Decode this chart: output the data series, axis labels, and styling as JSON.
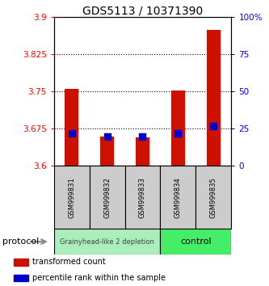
{
  "title": "GDS5113 / 10371390",
  "samples": [
    "GSM999831",
    "GSM999832",
    "GSM999833",
    "GSM999834",
    "GSM999835"
  ],
  "transformed_counts": [
    3.755,
    3.66,
    3.657,
    3.752,
    3.875
  ],
  "percentile_ranks": [
    22,
    20,
    20,
    22,
    27
  ],
  "ylim_left": [
    3.6,
    3.9
  ],
  "ylim_right": [
    0,
    100
  ],
  "yticks_left": [
    3.6,
    3.675,
    3.75,
    3.825,
    3.9
  ],
  "yticks_right": [
    0,
    25,
    50,
    75,
    100
  ],
  "ytick_labels_left": [
    "3.6",
    "3.675",
    "3.75",
    "3.825",
    "3.9"
  ],
  "ytick_labels_right": [
    "0",
    "25",
    "50",
    "75",
    "100%"
  ],
  "hlines": [
    3.675,
    3.75,
    3.825
  ],
  "group1_label": "Grainyhead-like 2 depletion",
  "group1_samples": [
    0,
    1,
    2
  ],
  "group1_color": "#aaeebb",
  "group2_label": "control",
  "group2_samples": [
    3,
    4
  ],
  "group2_color": "#44ee66",
  "bar_color": "#cc1100",
  "dot_color": "#0000cc",
  "bar_bottom": 3.6,
  "bar_width": 0.4,
  "dot_size": 30,
  "group_label": "protocol",
  "legend_items": [
    {
      "color": "#cc1100",
      "label": "transformed count"
    },
    {
      "color": "#0000cc",
      "label": "percentile rank within the sample"
    }
  ],
  "sample_box_color": "#cccccc",
  "title_fontsize": 10,
  "tick_fontsize": 7.5,
  "label_fontsize": 7.5
}
